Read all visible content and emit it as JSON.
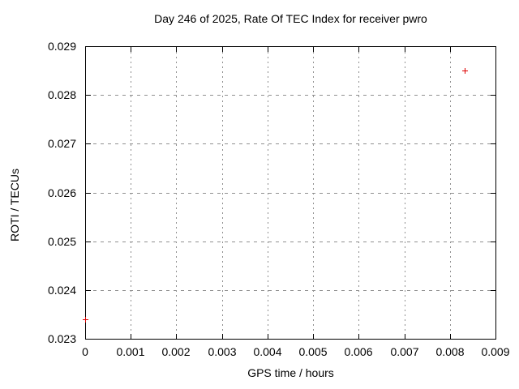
{
  "chart": {
    "title": "Day 246 of 2025, Rate Of TEC Index for receiver pwro",
    "xlabel": "GPS time / hours",
    "ylabel": "ROTI / TECUs"
  },
  "chart_data": {
    "type": "scatter",
    "title": "Day 246 of 2025, Rate Of TEC Index for receiver pwro",
    "xlabel": "GPS time / hours",
    "ylabel": "ROTI / TECUs",
    "xlim": [
      0,
      0.009
    ],
    "ylim": [
      0.023,
      0.029
    ],
    "x_tick_labels": [
      "0",
      "0.001",
      "0.002",
      "0.003",
      "0.004",
      "0.005",
      "0.006",
      "0.007",
      "0.008",
      "0.009"
    ],
    "y_tick_labels": [
      "0.023",
      "0.024",
      "0.025",
      "0.026",
      "0.027",
      "0.028",
      "0.029"
    ],
    "grid": true,
    "grid_color": "#909090",
    "legend": "none",
    "axis_color": "#000000",
    "series": [
      {
        "name": "ROTI",
        "marker": "plus",
        "color": "#dd0000",
        "points": [
          {
            "x": 0.0,
            "y": 0.0234
          },
          {
            "x": 0.00833,
            "y": 0.0285
          }
        ]
      }
    ]
  }
}
